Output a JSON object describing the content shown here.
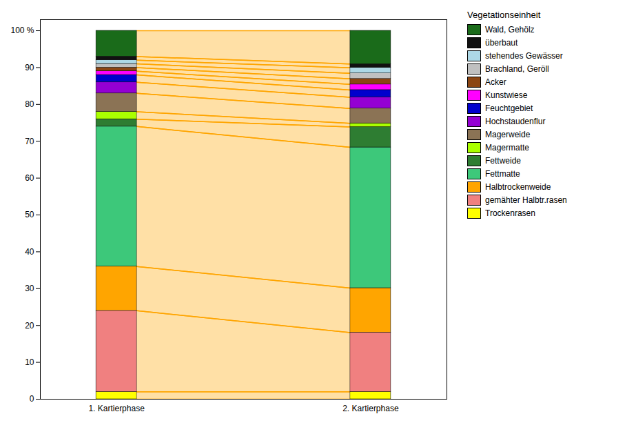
{
  "chart_data": {
    "type": "bar",
    "stacked": true,
    "categories": [
      "1. Kartierphase",
      "2. Kartierphase"
    ],
    "legend_title": "Vegetationseinheit",
    "legend": "right",
    "grid": false,
    "ylim": [
      0,
      103
    ],
    "yticks": [
      0,
      10,
      20,
      30,
      40,
      50,
      60,
      70,
      80,
      90,
      {
        "value": 100,
        "label": "100 %"
      }
    ],
    "series": [
      {
        "name": "Trockenrasen",
        "color": "#FFFF00",
        "values": [
          2,
          2.0100502512562812
        ]
      },
      {
        "name": "gemähter Halbtr.rasen",
        "color": "#F08080",
        "values": [
          22,
          16.08040201005025
        ]
      },
      {
        "name": "Halbtrockenweide",
        "color": "#FFA500",
        "values": [
          12,
          12.06030150753769
        ]
      },
      {
        "name": "Fettmatte",
        "color": "#3DC87A",
        "values": [
          38,
          38.19095477386935
        ]
      },
      {
        "name": "Fettweide",
        "color": "#2E7D32",
        "values": [
          2,
          5.527638190954774
        ]
      },
      {
        "name": "Magermatte",
        "color": "#AAFF00",
        "values": [
          2,
          1.0050251256281406
        ]
      },
      {
        "name": "Magerweide",
        "color": "#8B7355",
        "values": [
          5,
          4.020100502512563
        ]
      },
      {
        "name": "Hochstaudenflur",
        "color": "#9400D3",
        "values": [
          3,
          3.015075376884422
        ]
      },
      {
        "name": "Feuchtgebiet",
        "color": "#0000CD",
        "values": [
          2,
          2.0100502512562812
        ]
      },
      {
        "name": "Kunstwiese",
        "color": "#FF00FF",
        "values": [
          1,
          1.507537688442211
        ]
      },
      {
        "name": "Acker",
        "color": "#8B4513",
        "values": [
          1,
          1.507537688442211
        ]
      },
      {
        "name": "Brachland, Geröll",
        "color": "#C0C0C0",
        "values": [
          1,
          1.507537688442211
        ]
      },
      {
        "name": "stehendes Gewässer",
        "color": "#ADD8E6",
        "values": [
          1,
          1.507537688442211
        ]
      },
      {
        "name": "überbaut",
        "color": "#111111",
        "values": [
          1,
          1.0050251256281406
        ]
      },
      {
        "name": "Wald, Gehölz",
        "color": "#1A6B1A",
        "values": [
          7,
          9.045226130653266
        ]
      }
    ],
    "flows": {
      "color": "#FFA500",
      "pairs": [
        [
          "Trockenrasen",
          "Trockenrasen"
        ],
        [
          "gemähter Halbtr.rasen",
          "gemähter Halbtr.rasen"
        ],
        [
          "Halbtrockenweide",
          "Halbtrockenweide"
        ],
        [
          "Fettmatte",
          "Fettmatte"
        ],
        [
          "Fettweide",
          "Fettweide"
        ],
        [
          "Magermatte",
          "Magermatte"
        ],
        [
          "Magerweide",
          "Magerweide"
        ],
        [
          "Hochstaudenflur",
          "Hochstaudenflur"
        ],
        [
          "Feuchtgebiet",
          "Feuchtgebiet"
        ],
        [
          "Kunstwiese",
          "Kunstwiese"
        ],
        [
          "Acker",
          "Acker"
        ],
        [
          "Brachland, Geröll",
          "Brachland, Geröll"
        ],
        [
          "stehendes Gewässer",
          "stehendes Gewässer"
        ],
        [
          "überbaut",
          "überbaut"
        ],
        [
          "Wald, Gehölz",
          "Wald, Gehölz"
        ]
      ]
    }
  }
}
